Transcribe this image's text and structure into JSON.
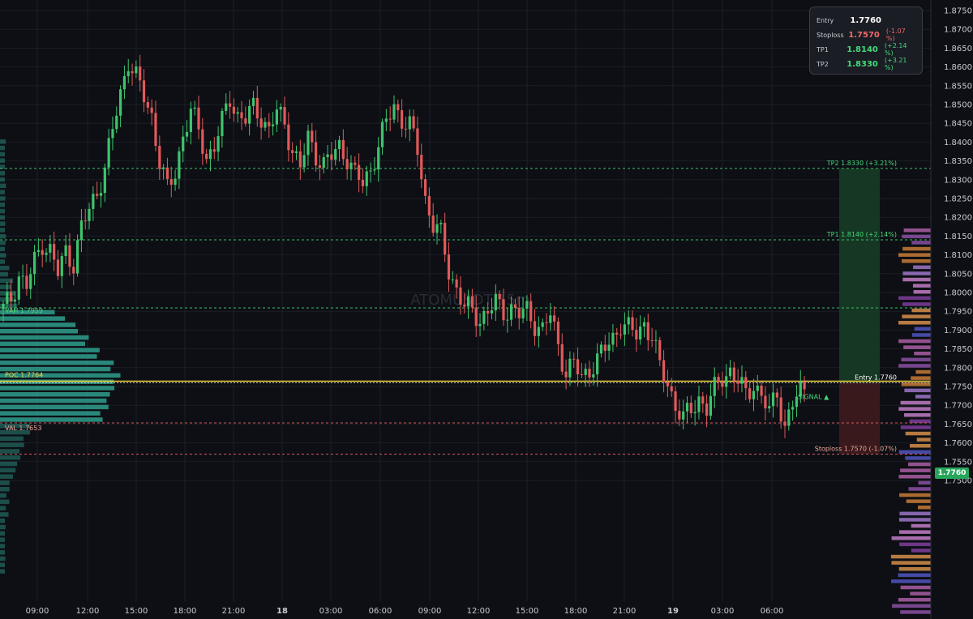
{
  "colors": {
    "background": "#0d0f14",
    "grid": "#1c1f27",
    "up": "#26a69a",
    "up_candle": "#3ec46d",
    "down": "#e05a5a",
    "tp_zone": "#163a24",
    "sl_zone": "#3d1a1d",
    "poc": "#f0d43a",
    "profile": "#2f9e8c",
    "green_text": "#45d97a",
    "red_text": "#ef6a6a",
    "salmon_text": "#f0a79a"
  },
  "chart_data": {
    "type": "candlestick",
    "symbol_watermark": "ATOMUSDT,15m",
    "y_axis": {
      "min": 1.745,
      "max": 1.878,
      "ticks": [
        "1.8750",
        "1.8700",
        "1.8650",
        "1.8600",
        "1.8550",
        "1.8500",
        "1.8450",
        "1.8400",
        "1.8350",
        "1.8300",
        "1.8250",
        "1.8200",
        "1.8150",
        "1.8100",
        "1.8050",
        "1.8000",
        "1.7950",
        "1.7900",
        "1.7850",
        "1.7800",
        "1.7750",
        "1.7700",
        "1.7650",
        "1.7600",
        "1.7550",
        "1.7500"
      ]
    },
    "x_axis": {
      "ticks": [
        {
          "label": "09:00",
          "bold": false
        },
        {
          "label": "12:00",
          "bold": false
        },
        {
          "label": "15:00",
          "bold": false
        },
        {
          "label": "18:00",
          "bold": false
        },
        {
          "label": "21:00",
          "bold": false
        },
        {
          "label": "18",
          "bold": true
        },
        {
          "label": "03:00",
          "bold": false
        },
        {
          "label": "06:00",
          "bold": false
        },
        {
          "label": "09:00",
          "bold": false
        },
        {
          "label": "12:00",
          "bold": false
        },
        {
          "label": "15:00",
          "bold": false
        },
        {
          "label": "18:00",
          "bold": false
        },
        {
          "label": "21:00",
          "bold": false
        },
        {
          "label": "19",
          "bold": true
        },
        {
          "label": "03:00",
          "bold": false
        },
        {
          "label": "06:00",
          "bold": false
        }
      ]
    },
    "path_points": [
      [
        0,
        1.7955
      ],
      [
        2,
        1.7985
      ],
      [
        4,
        1.8045
      ],
      [
        6,
        1.8015
      ],
      [
        8,
        1.808
      ],
      [
        10,
        1.8135
      ],
      [
        12,
        1.811
      ],
      [
        14,
        1.805
      ],
      [
        16,
        1.811
      ],
      [
        18,
        1.808
      ],
      [
        20,
        1.817
      ],
      [
        22,
        1.822
      ],
      [
        24,
        1.827
      ],
      [
        26,
        1.833
      ],
      [
        28,
        1.843
      ],
      [
        30,
        1.853
      ],
      [
        32,
        1.862
      ],
      [
        34,
        1.857
      ],
      [
        36,
        1.852
      ],
      [
        38,
        1.847
      ],
      [
        40,
        1.835
      ],
      [
        42,
        1.827
      ],
      [
        44,
        1.832
      ],
      [
        46,
        1.842
      ],
      [
        48,
        1.848
      ],
      [
        50,
        1.843
      ],
      [
        52,
        1.836
      ],
      [
        54,
        1.839
      ],
      [
        56,
        1.845
      ],
      [
        58,
        1.852
      ],
      [
        60,
        1.847
      ],
      [
        62,
        1.846
      ],
      [
        64,
        1.849
      ],
      [
        66,
        1.847
      ],
      [
        68,
        1.843
      ],
      [
        70,
        1.848
      ],
      [
        72,
        1.845
      ],
      [
        74,
        1.838
      ],
      [
        76,
        1.833
      ],
      [
        78,
        1.841
      ],
      [
        80,
        1.837
      ],
      [
        82,
        1.834
      ],
      [
        84,
        1.836
      ],
      [
        86,
        1.839
      ],
      [
        88,
        1.836
      ],
      [
        90,
        1.831
      ],
      [
        92,
        1.829
      ],
      [
        94,
        1.833
      ],
      [
        96,
        1.839
      ],
      [
        98,
        1.845
      ],
      [
        100,
        1.85
      ],
      [
        102,
        1.846
      ],
      [
        104,
        1.844
      ],
      [
        106,
        1.838
      ],
      [
        108,
        1.825
      ],
      [
        110,
        1.818
      ],
      [
        112,
        1.815
      ],
      [
        114,
        1.806
      ],
      [
        116,
        1.801
      ],
      [
        118,
        1.796
      ],
      [
        120,
        1.795
      ],
      [
        122,
        1.793
      ],
      [
        124,
        1.795
      ],
      [
        126,
        1.797
      ],
      [
        128,
        1.795
      ],
      [
        130,
        1.796
      ],
      [
        132,
        1.794
      ],
      [
        134,
        1.795
      ],
      [
        136,
        1.792
      ],
      [
        138,
        1.79
      ],
      [
        140,
        1.794
      ],
      [
        142,
        1.786
      ],
      [
        144,
        1.779
      ],
      [
        146,
        1.781
      ],
      [
        148,
        1.777
      ],
      [
        150,
        1.78
      ],
      [
        152,
        1.782
      ],
      [
        154,
        1.785
      ],
      [
        156,
        1.788
      ],
      [
        158,
        1.792
      ],
      [
        160,
        1.79
      ],
      [
        162,
        1.789
      ],
      [
        164,
        1.792
      ],
      [
        166,
        1.788
      ],
      [
        168,
        1.78
      ],
      [
        170,
        1.776
      ],
      [
        172,
        1.77
      ],
      [
        174,
        1.766
      ],
      [
        176,
        1.769
      ],
      [
        178,
        1.772
      ],
      [
        180,
        1.769
      ],
      [
        182,
        1.774
      ],
      [
        184,
        1.778
      ],
      [
        186,
        1.779
      ],
      [
        188,
        1.776
      ],
      [
        190,
        1.773
      ],
      [
        192,
        1.776
      ],
      [
        194,
        1.772
      ],
      [
        196,
        1.768
      ],
      [
        198,
        1.774
      ],
      [
        200,
        1.764
      ],
      [
        202,
        1.77
      ],
      [
        204,
        1.774
      ],
      [
        206,
        1.7755
      ]
    ],
    "levels": {
      "tp2": {
        "label": "TP2 1.8330 (+3.21%)",
        "price": 1.833
      },
      "tp1": {
        "label": "TP1 1.8140 (+2.14%)",
        "price": 1.814
      },
      "vah": {
        "label": "VAH 1.7959",
        "price": 1.7959
      },
      "poc": {
        "label": "POC 1.7764",
        "price": 1.7764
      },
      "entry": {
        "label": "Entry 1.7760",
        "price": 1.776
      },
      "val": {
        "label": "VAL 1.7653",
        "price": 1.7653
      },
      "stoploss": {
        "label": "Stoploss 1.7570 (-1.07%)",
        "price": 1.757
      }
    },
    "signal_label": "SIGNAL ▲",
    "current_price": "1.7760"
  },
  "info_panel": {
    "rows": [
      {
        "label": "Entry",
        "value": "1.7760",
        "pct": "",
        "color": "#ffffff"
      },
      {
        "label": "Stoploss",
        "value": "1.7570",
        "pct": "(-1.07 %)",
        "color": "#ef6a6a"
      },
      {
        "label": "TP1",
        "value": "1.8140",
        "pct": "(+2.14 %)",
        "color": "#45d97a"
      },
      {
        "label": "TP2",
        "value": "1.8330",
        "pct": "(+3.21 %)",
        "color": "#45d97a"
      }
    ]
  }
}
